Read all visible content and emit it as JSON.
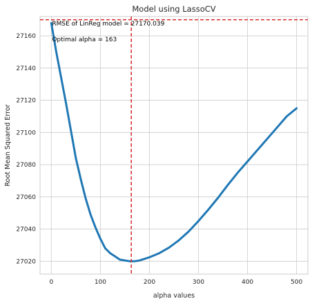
{
  "chart_data": {
    "type": "line",
    "title": "Model using LassoCV",
    "xlabel": "alpha values",
    "ylabel": "Root Mean Squared Error",
    "xlim": [
      -23,
      523
    ],
    "ylim": [
      27012,
      27172
    ],
    "xticks": [
      0,
      100,
      200,
      300,
      400,
      500
    ],
    "yticks": [
      27020,
      27040,
      27060,
      27080,
      27100,
      27120,
      27140,
      27160
    ],
    "grid": true,
    "series": [
      {
        "color": "#1f77b4",
        "x": [
          0,
          10,
          20,
          30,
          40,
          50,
          60,
          70,
          80,
          90,
          100,
          110,
          120,
          130,
          140,
          150,
          160,
          170,
          180,
          190,
          200,
          220,
          240,
          260,
          280,
          300,
          320,
          340,
          360,
          380,
          400,
          420,
          440,
          460,
          480,
          500
        ],
        "y": [
          27168,
          27150,
          27134,
          27118,
          27101,
          27084,
          27071,
          27059,
          27049,
          27041,
          27034,
          27028,
          27025,
          27023,
          27021,
          27020.5,
          27020,
          27020,
          27020.5,
          27021.5,
          27022.5,
          27025,
          27028.5,
          27033,
          27038.5,
          27045,
          27052,
          27059.5,
          27067.5,
          27075,
          27082,
          27089,
          27096,
          27103,
          27110,
          27115
        ]
      }
    ],
    "reference_lines": [
      {
        "orientation": "horizontal",
        "value": 27170.039,
        "color": "#d62728",
        "style": "dashed"
      },
      {
        "orientation": "vertical",
        "value": 163,
        "color": "#d62728",
        "style": "dashed"
      }
    ],
    "annotations": [
      {
        "text": "RMSE of LinReg model = 27170.039",
        "x": 0,
        "y": 27166.5
      },
      {
        "text": "Optimal alpha = 163",
        "x": 0,
        "y": 27156.5
      }
    ]
  }
}
